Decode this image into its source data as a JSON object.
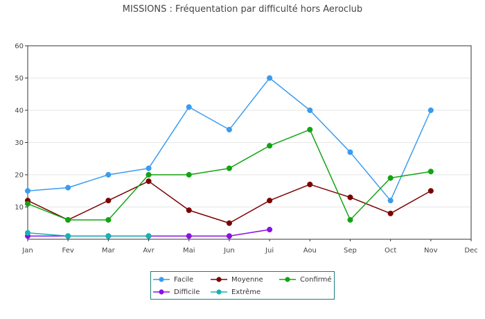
{
  "chart_data": {
    "type": "line",
    "title": "MISSIONS : Fréquentation par difficulté hors Aeroclub",
    "categories": [
      "Jan",
      "Fev",
      "Mar",
      "Avr",
      "Mai",
      "Jun",
      "Jui",
      "Aou",
      "Sep",
      "Oct",
      "Nov",
      "Dec"
    ],
    "ylim": [
      0,
      60
    ],
    "yticks": [
      10,
      20,
      30,
      40,
      50,
      60
    ],
    "grid": true,
    "legend_position": "bottom",
    "series": [
      {
        "name": "Facile",
        "color": "#3a9cf0",
        "values": [
          15,
          16,
          20,
          22,
          41,
          34,
          50,
          40,
          27,
          12,
          40,
          null
        ]
      },
      {
        "name": "Moyenne",
        "color": "#7b0000",
        "values": [
          12,
          6,
          12,
          18,
          9,
          5,
          12,
          17,
          13,
          8,
          15,
          null
        ]
      },
      {
        "name": "Confirmé",
        "color": "#12a412",
        "values": [
          11,
          6,
          6,
          20,
          20,
          22,
          29,
          34,
          6,
          19,
          21,
          null
        ]
      },
      {
        "name": "Difficile",
        "color": "#8a10e6",
        "values": [
          1,
          1,
          1,
          1,
          1,
          1,
          3,
          null,
          null,
          null,
          null,
          null
        ]
      },
      {
        "name": "Extrême",
        "color": "#18b2b2",
        "values": [
          2,
          1,
          1,
          1,
          null,
          null,
          null,
          null,
          null,
          null,
          null,
          null
        ]
      }
    ]
  }
}
